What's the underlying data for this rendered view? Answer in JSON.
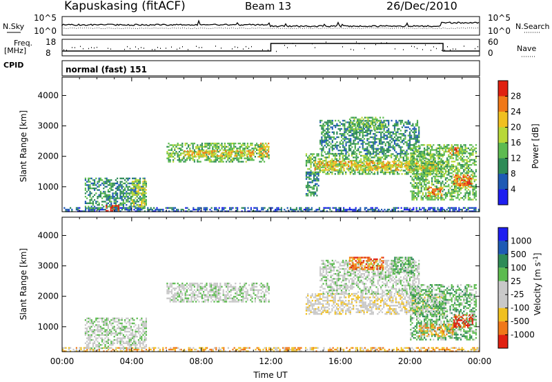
{
  "header": {
    "station": "Kapuskasing (fitACF)",
    "beam": "Beam 13",
    "date": "26/Dec/2010"
  },
  "noise_panel": {
    "left_label": "N.Sky",
    "right_label": "N.Search",
    "ticks": [
      "10^5",
      "10^0"
    ]
  },
  "freq_panel": {
    "left_label_line1": "Freq.",
    "left_label_line2": "[MHz]",
    "right_label": "Nave",
    "left_ticks": [
      "18",
      "8"
    ],
    "right_ticks": [
      "60",
      "0"
    ]
  },
  "cpid": {
    "label": "CPID",
    "mode": "normal (fast) 151"
  },
  "colors": {
    "power": [
      "#1e1ef0",
      "#1e5ab4",
      "#2e8b57",
      "#5dbb50",
      "#b8d838",
      "#f0c020",
      "#f07818",
      "#e02010"
    ],
    "velocity": [
      "#1e1ef0",
      "#1e5ab4",
      "#2e8b57",
      "#5dbb50",
      "#c8c8c8",
      "#c8c8c8",
      "#f0c020",
      "#f07818",
      "#e02010"
    ]
  },
  "chart_data": [
    {
      "type": "heatmap",
      "name": "power",
      "ylabel": "Slant Range [km]",
      "ylim": [
        180,
        4600
      ],
      "yticks": [
        "1000",
        "2000",
        "3000",
        "4000"
      ],
      "ytick_values": [
        1000,
        2000,
        3000,
        4000
      ],
      "xlim": [
        0,
        24
      ],
      "colorbar_label": "Power [dB]",
      "colorbar_ticks": [
        "4",
        "8",
        "12",
        "16",
        "20",
        "24",
        "28"
      ],
      "colorbar_range": [
        0,
        32
      ],
      "echo_regions": [
        {
          "t0": 0.0,
          "t1": 24.0,
          "r0": 200,
          "r1": 330,
          "level": 1
        },
        {
          "t0": 1.3,
          "t1": 4.8,
          "r0": 300,
          "r1": 1300,
          "level": 2
        },
        {
          "t0": 2.5,
          "t1": 3.2,
          "r0": 200,
          "r1": 400,
          "level": 7
        },
        {
          "t0": 4.0,
          "t1": 4.8,
          "r0": 350,
          "r1": 1250,
          "level": 4
        },
        {
          "t0": 6.0,
          "t1": 11.9,
          "r0": 1800,
          "r1": 2450,
          "level": 3
        },
        {
          "t0": 7.0,
          "t1": 11.0,
          "r0": 2000,
          "r1": 2200,
          "level": 5
        },
        {
          "t0": 11.3,
          "t1": 11.9,
          "r0": 2000,
          "r1": 2450,
          "level": 5
        },
        {
          "t0": 14.0,
          "t1": 22.0,
          "r0": 1400,
          "r1": 2100,
          "level": 3
        },
        {
          "t0": 14.5,
          "t1": 21.8,
          "r0": 1550,
          "r1": 1850,
          "level": 5
        },
        {
          "t0": 14.0,
          "t1": 14.7,
          "r0": 700,
          "r1": 1500,
          "level": 2
        },
        {
          "t0": 14.8,
          "t1": 20.5,
          "r0": 2100,
          "r1": 3200,
          "level": 2
        },
        {
          "t0": 16.5,
          "t1": 18.5,
          "r0": 2900,
          "r1": 3300,
          "level": 3
        },
        {
          "t0": 20.0,
          "t1": 23.8,
          "r0": 600,
          "r1": 2400,
          "level": 3
        },
        {
          "t0": 22.5,
          "t1": 23.6,
          "r0": 1000,
          "r1": 1400,
          "level": 6
        },
        {
          "t0": 21.0,
          "t1": 21.8,
          "r0": 700,
          "r1": 1000,
          "level": 6
        },
        {
          "t0": 22.2,
          "t1": 22.8,
          "r0": 2050,
          "r1": 2300,
          "level": 6
        }
      ]
    },
    {
      "type": "heatmap",
      "name": "velocity",
      "ylabel": "Slant Range [km]",
      "ylim": [
        180,
        4600
      ],
      "yticks": [
        "1000",
        "2000",
        "3000",
        "4000"
      ],
      "ytick_values": [
        1000,
        2000,
        3000,
        4000
      ],
      "xlim": [
        0,
        24
      ],
      "xlabel": "Time UT",
      "xticks": [
        "00:00",
        "04:00",
        "08:00",
        "12:00",
        "16:00",
        "20:00",
        "00:00"
      ],
      "xtick_values": [
        0,
        4,
        8,
        12,
        16,
        20,
        24
      ],
      "colorbar_label": "Velocity [m s^-1]",
      "colorbar_ticks": [
        "1000",
        "500",
        "100",
        "25",
        "-25",
        "-100",
        "-500",
        "-1000"
      ],
      "echo_regions": [
        {
          "t0": 0.0,
          "t1": 24.0,
          "r0": 200,
          "r1": 330,
          "level": 6
        },
        {
          "t0": 1.3,
          "t1": 4.8,
          "r0": 300,
          "r1": 1300,
          "level": 4
        },
        {
          "t0": 6.0,
          "t1": 11.9,
          "r0": 1800,
          "r1": 2450,
          "level": 4
        },
        {
          "t0": 14.0,
          "t1": 22.0,
          "r0": 1400,
          "r1": 2100,
          "level": 5
        },
        {
          "t0": 14.8,
          "t1": 20.5,
          "r0": 2100,
          "r1": 3200,
          "level": 4
        },
        {
          "t0": 16.5,
          "t1": 18.5,
          "r0": 2900,
          "r1": 3300,
          "level": 7
        },
        {
          "t0": 19.0,
          "t1": 20.2,
          "r0": 2800,
          "r1": 3300,
          "level": 3
        },
        {
          "t0": 20.0,
          "t1": 23.8,
          "r0": 600,
          "r1": 2400,
          "level": 3
        },
        {
          "t0": 20.5,
          "t1": 22.5,
          "r0": 700,
          "r1": 1100,
          "level": 6
        },
        {
          "t0": 22.5,
          "t1": 23.6,
          "r0": 1000,
          "r1": 1400,
          "level": 8
        }
      ]
    }
  ]
}
